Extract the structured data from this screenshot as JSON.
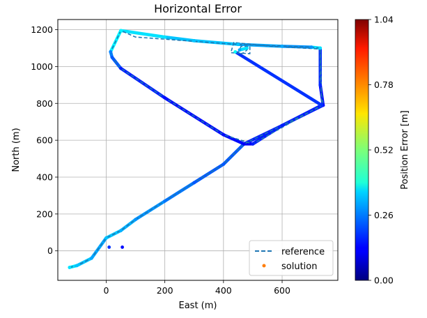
{
  "chart_data": {
    "type": "scatter",
    "title": "Horizontal Error",
    "xlabel": "East (m)",
    "ylabel": "North (m)",
    "xlim": [
      -165,
      790
    ],
    "ylim": [
      -160,
      1255
    ],
    "xticks": [
      0,
      200,
      400,
      600
    ],
    "yticks": [
      0,
      200,
      400,
      600,
      800,
      1000,
      1200
    ],
    "grid": true,
    "legend_position": "lower-right",
    "colorbar": {
      "label": "Position Error [m]",
      "colormap": "jet",
      "range": [
        0.0,
        1.04
      ],
      "ticks": [
        "0.00",
        "0.26",
        "0.52",
        "0.78",
        "1.04"
      ]
    },
    "series": [
      {
        "name": "reference",
        "style": "dashed",
        "color": "#1f77b4",
        "x": [
          -125,
          -100,
          -50,
          0,
          50,
          100,
          200,
          300,
          400,
          470,
          740,
          730,
          730,
          730,
          700,
          450,
          400,
          100,
          50,
          15,
          20,
          50,
          200,
          400,
          500,
          735,
          730,
          560,
          435,
          425,
          490,
          490,
          460,
          450,
          460,
          470,
          480,
          485
        ],
        "y": [
          -90,
          -80,
          -40,
          70,
          110,
          170,
          270,
          370,
          470,
          580,
          790,
          900,
          1000,
          1100,
          1105,
          1120,
          1125,
          1160,
          1195,
          1080,
          1050,
          990,
          830,
          630,
          580,
          790,
          1095,
          1110,
          1130,
          1075,
          1070,
          1110,
          1110,
          1075,
          1070,
          1075,
          1090,
          1100
        ]
      },
      {
        "name": "solution",
        "style": "points",
        "color": "#ff7f0e",
        "colored_by": "position_error",
        "x": [
          -125,
          -100,
          -50,
          0,
          50,
          100,
          200,
          300,
          400,
          470,
          600,
          740,
          730,
          730,
          700,
          600,
          450,
          300,
          200,
          50,
          15,
          20,
          50,
          200,
          400,
          470,
          500,
          600,
          735,
          440,
          480,
          455,
          10,
          55
        ],
        "y": [
          -90,
          -80,
          -40,
          70,
          110,
          170,
          270,
          370,
          470,
          580,
          680,
          790,
          900,
          1100,
          1105,
          1110,
          1120,
          1140,
          1160,
          1195,
          1080,
          1050,
          990,
          830,
          630,
          580,
          580,
          680,
          790,
          1080,
          1100,
          1090,
          20,
          20
        ],
        "error": [
          0.36,
          0.33,
          0.3,
          0.33,
          0.31,
          0.28,
          0.25,
          0.22,
          0.22,
          0.16,
          0.16,
          0.14,
          0.17,
          0.36,
          0.28,
          0.3,
          0.33,
          0.33,
          0.36,
          0.38,
          0.26,
          0.22,
          0.16,
          0.14,
          0.14,
          0.12,
          0.16,
          0.16,
          0.18,
          0.4,
          0.36,
          0.3,
          0.18,
          0.14
        ]
      }
    ]
  }
}
